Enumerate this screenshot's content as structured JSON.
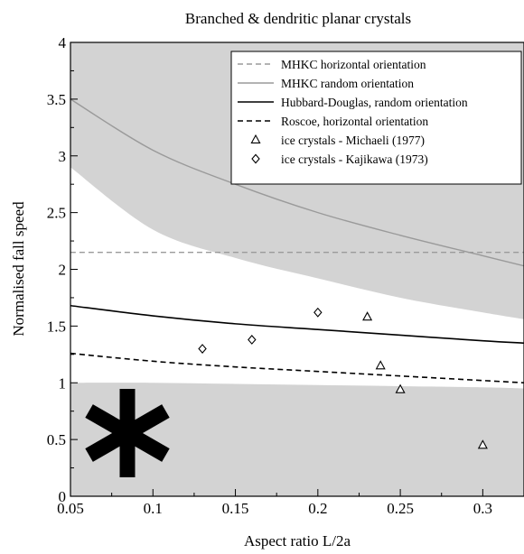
{
  "chart_data": {
    "type": "scatter",
    "title": "Branched & dendritic planar crystals",
    "xlabel": "Aspect ratio L/2a",
    "ylabel": "Normalised fall speed",
    "xlim": [
      0.05,
      0.325
    ],
    "ylim": [
      0,
      4
    ],
    "xticks": [
      0.05,
      0.1,
      0.15,
      0.2,
      0.25,
      0.3
    ],
    "xtick_labels": [
      "0.05",
      "0.1",
      "0.15",
      "0.2",
      "0.25",
      "0.3"
    ],
    "yticks": [
      0,
      0.5,
      1,
      1.5,
      2,
      2.5,
      3,
      3.5,
      4
    ],
    "ytick_labels": [
      "0",
      "0.5",
      "1",
      "1.5",
      "2",
      "2.5",
      "3",
      "3.5",
      "4"
    ],
    "grid": false,
    "legend_position": "top-right",
    "colors": {
      "band": "#d3d3d3",
      "mhkc": "#9a9a9a",
      "black": "#000000"
    },
    "shaded_bands": [
      {
        "x": [
          0.05,
          0.1,
          0.15,
          0.2,
          0.25,
          0.3,
          0.325
        ],
        "lower": [
          2.9,
          2.35,
          2.1,
          1.92,
          1.75,
          1.62,
          1.56
        ],
        "upper": [
          4,
          4,
          4,
          4,
          4,
          4,
          4
        ]
      },
      {
        "x": [
          0.05,
          0.1,
          0.15,
          0.2,
          0.25,
          0.3,
          0.325
        ],
        "lower": [
          0,
          0,
          0,
          0,
          0,
          0,
          0
        ],
        "upper": [
          1.0,
          1.0,
          0.99,
          0.98,
          0.97,
          0.96,
          0.95
        ]
      }
    ],
    "series": [
      {
        "name": "MHKC horizontal orientation",
        "kind": "line",
        "style": "dashed",
        "color": "#9a9a9a",
        "x": [
          0.05,
          0.325
        ],
        "y": [
          2.15,
          2.15
        ]
      },
      {
        "name": "MHKC random orientation",
        "kind": "line",
        "style": "solid",
        "color": "#9a9a9a",
        "x": [
          0.05,
          0.1,
          0.15,
          0.2,
          0.25,
          0.3,
          0.325
        ],
        "y": [
          3.5,
          3.05,
          2.75,
          2.5,
          2.3,
          2.12,
          2.03
        ]
      },
      {
        "name": "Hubbard-Douglas, random orientation",
        "kind": "line",
        "style": "solid",
        "color": "#000000",
        "x": [
          0.05,
          0.1,
          0.15,
          0.2,
          0.25,
          0.3,
          0.325
        ],
        "y": [
          1.68,
          1.59,
          1.52,
          1.47,
          1.42,
          1.37,
          1.35
        ]
      },
      {
        "name": "Roscoe, horizontal orientation",
        "kind": "line",
        "style": "dashed",
        "color": "#000000",
        "x": [
          0.05,
          0.1,
          0.15,
          0.2,
          0.25,
          0.3,
          0.325
        ],
        "y": [
          1.26,
          1.19,
          1.14,
          1.1,
          1.06,
          1.02,
          1.0
        ]
      },
      {
        "name": "ice crystals - Michaeli (1977)",
        "kind": "points",
        "marker": "triangle",
        "color": "#000000",
        "x": [
          0.23,
          0.238,
          0.25,
          0.3
        ],
        "y": [
          1.58,
          1.15,
          0.94,
          0.45
        ]
      },
      {
        "name": "ice crystals - Kajikawa (1973)",
        "kind": "points",
        "marker": "diamond",
        "color": "#000000",
        "x": [
          0.13,
          0.16,
          0.2
        ],
        "y": [
          1.3,
          1.38,
          1.62
        ]
      }
    ]
  },
  "crystal_icon": {
    "name": "snowflake-icon",
    "color": "#000000"
  }
}
